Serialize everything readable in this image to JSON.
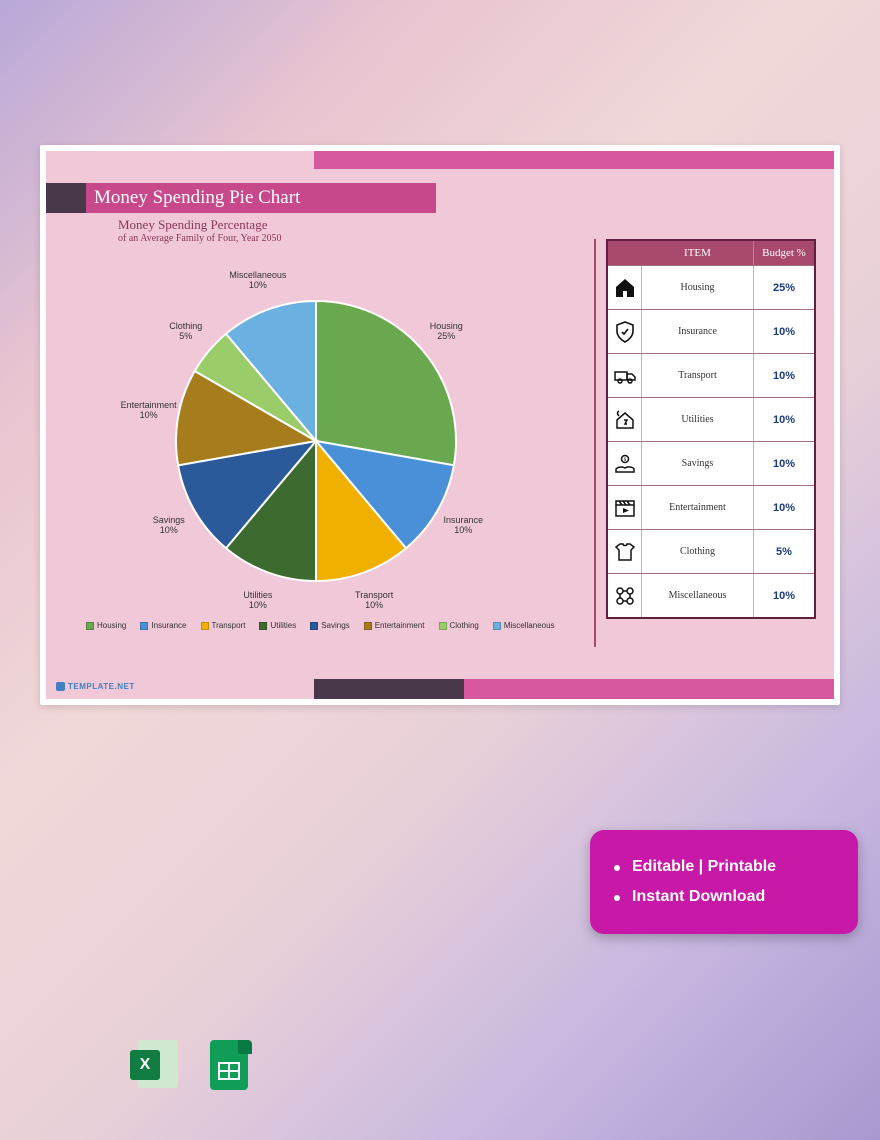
{
  "header": {
    "title": "Money Spending Pie Chart",
    "subtitle1": "Money Spending Percentage",
    "subtitle2": "of an Average Family of Four, Year 2050",
    "title_bg": "#c8488c",
    "title_accent": "#483848",
    "top_accent": "#d858a0"
  },
  "chart": {
    "type": "pie",
    "background_color": "#f0c8d8",
    "slices": [
      {
        "label": "Housing",
        "value": 25,
        "color": "#6aa84f",
        "display": "Housing\n25%"
      },
      {
        "label": "Insurance",
        "value": 10,
        "color": "#4a90d9",
        "display": "Insurance\n10%"
      },
      {
        "label": "Transport",
        "value": 10,
        "color": "#f1b000",
        "display": "Transport\n10%"
      },
      {
        "label": "Utilities",
        "value": 10,
        "color": "#3d6b2f",
        "display": "Utilities\n10%"
      },
      {
        "label": "Savings",
        "value": 10,
        "color": "#2a5a9a",
        "display": "Savings\n10%"
      },
      {
        "label": "Entertainment",
        "value": 10,
        "color": "#a67c1c",
        "display": "Entertainment\n10%"
      },
      {
        "label": "Clothing",
        "value": 5,
        "color": "#9acd6a",
        "display": "Clothing\n5%"
      },
      {
        "label": "Miscellaneous",
        "value": 10,
        "color": "#6ab0e0",
        "display": "Miscellaneous\n10%"
      }
    ],
    "slice_border": "#ffffff",
    "slice_border_width": 2,
    "label_fontsize": 9,
    "label_color": "#333333",
    "radius": 140
  },
  "legend": {
    "fontsize": 8,
    "items": [
      "Housing",
      "Insurance",
      "Transport",
      "Utilities",
      "Savings",
      "Entertainment",
      "Clothing",
      "Miscellaneous"
    ]
  },
  "table": {
    "header_bg": "#a8486c",
    "header_color": "#ffffff",
    "border_color": "#602040",
    "columns": [
      "ITEM",
      "Budget %"
    ],
    "value_color": "#1a3a7a",
    "rows": [
      {
        "icon": "house",
        "item": "Housing",
        "budget": "25%"
      },
      {
        "icon": "shield",
        "item": "Insurance",
        "budget": "10%"
      },
      {
        "icon": "truck",
        "item": "Transport",
        "budget": "10%"
      },
      {
        "icon": "plug-house",
        "item": "Utilities",
        "budget": "10%"
      },
      {
        "icon": "hand-coin",
        "item": "Savings",
        "budget": "10%"
      },
      {
        "icon": "clapper",
        "item": "Entertainment",
        "budget": "10%"
      },
      {
        "icon": "tshirt",
        "item": "Clothing",
        "budget": "5%"
      },
      {
        "icon": "misc",
        "item": "Miscellaneous",
        "budget": "10%"
      }
    ]
  },
  "watermark": "TEMPLATE.NET",
  "feature_card": {
    "bg": "#c818a8",
    "items": [
      "Editable | Printable",
      "Instant Download"
    ]
  },
  "app_icons": [
    "excel",
    "sheets"
  ]
}
